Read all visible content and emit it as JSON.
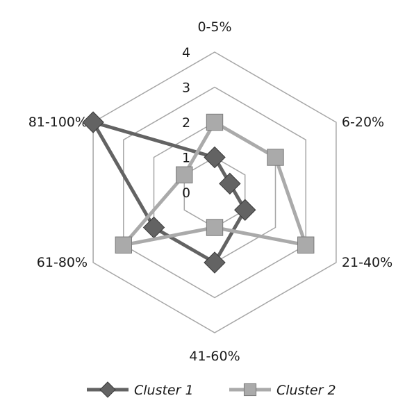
{
  "chart_data": {
    "type": "radar",
    "title": "",
    "categories": [
      "0-5%",
      "6-20%",
      "21-40%",
      "41-60%",
      "61-80%",
      "81-100%"
    ],
    "scale": {
      "min": 0,
      "max": 4,
      "ticks": [
        "0",
        "1",
        "2",
        "3",
        "4"
      ]
    },
    "series": [
      {
        "name": "Cluster 1",
        "values": [
          1,
          0.5,
          1,
          2,
          2,
          4
        ],
        "color": "#636363",
        "marker": "diamond"
      },
      {
        "name": "Cluster 2",
        "values": [
          2,
          2,
          3,
          1,
          3,
          1
        ],
        "color": "#aaaaaa",
        "marker": "square"
      }
    ],
    "legend": {
      "position": "bottom",
      "items": [
        "Cluster 1",
        "Cluster 2"
      ]
    },
    "grid": true
  }
}
